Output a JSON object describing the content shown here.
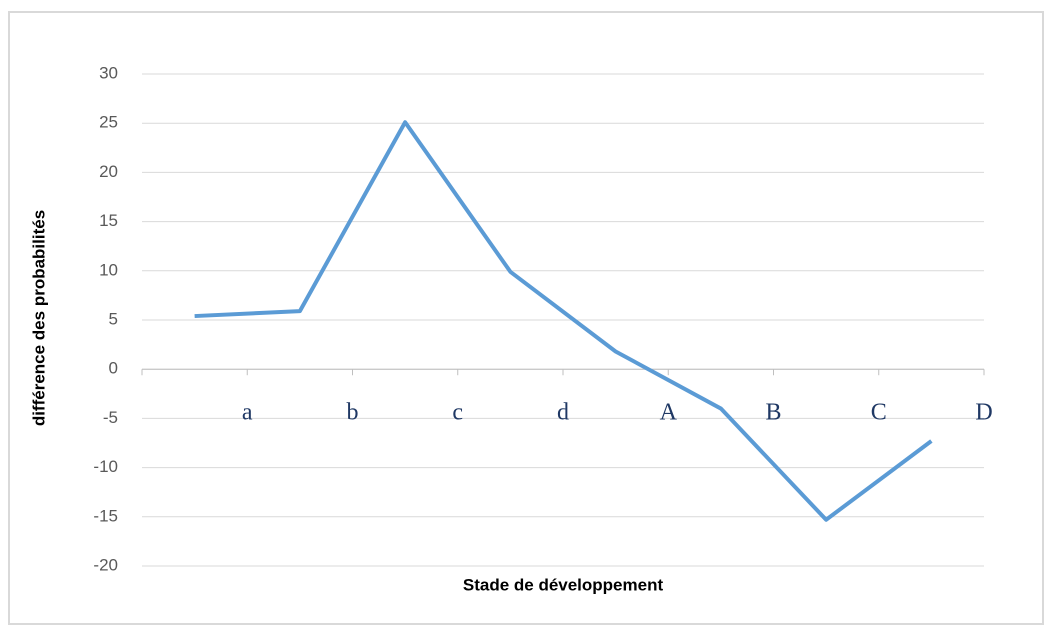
{
  "chart_data": {
    "type": "line",
    "x_label": "Stade de développement",
    "y_label": "différence des probabilités",
    "categories": [
      "a",
      "b",
      "c",
      "d",
      "A",
      "B",
      "C",
      "D"
    ],
    "series": [
      {
        "name": "différence",
        "color": "#5b9bd5",
        "values": [
          5.4,
          5.9,
          25.1,
          9.9,
          1.8,
          -4,
          -15.3,
          -7.3
        ]
      }
    ],
    "ylim": [
      -20,
      30
    ],
    "yticks": [
      -20,
      -15,
      -10,
      -5,
      0,
      5,
      10,
      15,
      20,
      25,
      30
    ],
    "grid": true
  }
}
